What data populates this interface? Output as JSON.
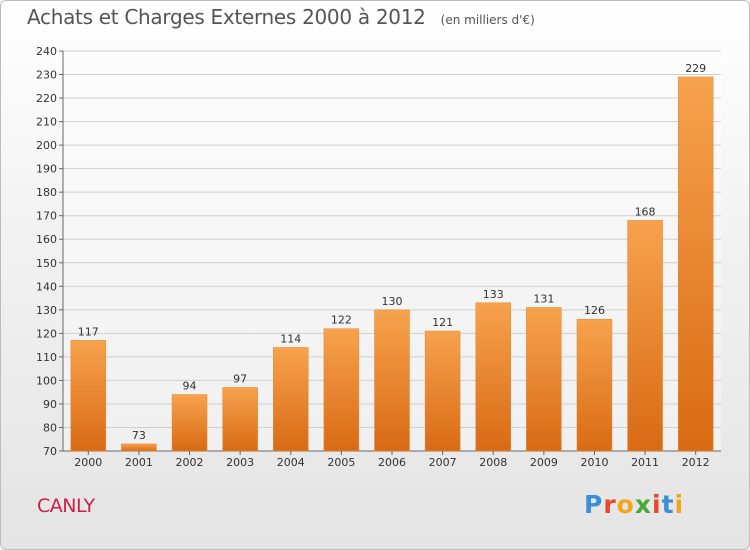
{
  "chart_data": {
    "type": "bar",
    "title": "Achats et Charges Externes 2000 à 2012",
    "subtitle": "(en milliers d'€)",
    "categories": [
      "2000",
      "2001",
      "2002",
      "2003",
      "2004",
      "2005",
      "2006",
      "2007",
      "2008",
      "2009",
      "2010",
      "2011",
      "2012"
    ],
    "values": [
      117,
      73,
      94,
      97,
      114,
      122,
      130,
      121,
      133,
      131,
      126,
      168,
      229
    ],
    "ylim": [
      70,
      240
    ],
    "yticks": [
      70,
      80,
      90,
      100,
      110,
      120,
      130,
      140,
      150,
      160,
      170,
      180,
      190,
      200,
      210,
      220,
      230,
      240
    ],
    "grid": true,
    "bar_color_light": "#f7a24d",
    "bar_color_dark": "#d96a14"
  },
  "footer": {
    "commune": "CANLY",
    "brand_letters": [
      "P",
      "r",
      "o",
      "x",
      "i",
      "t",
      "i"
    ],
    "brand_colors": [
      "#3a8fd6",
      "#e7462b",
      "#f2a71b",
      "#4aa936",
      "#e7462b",
      "#3a8fd6",
      "#f2a71b"
    ]
  }
}
